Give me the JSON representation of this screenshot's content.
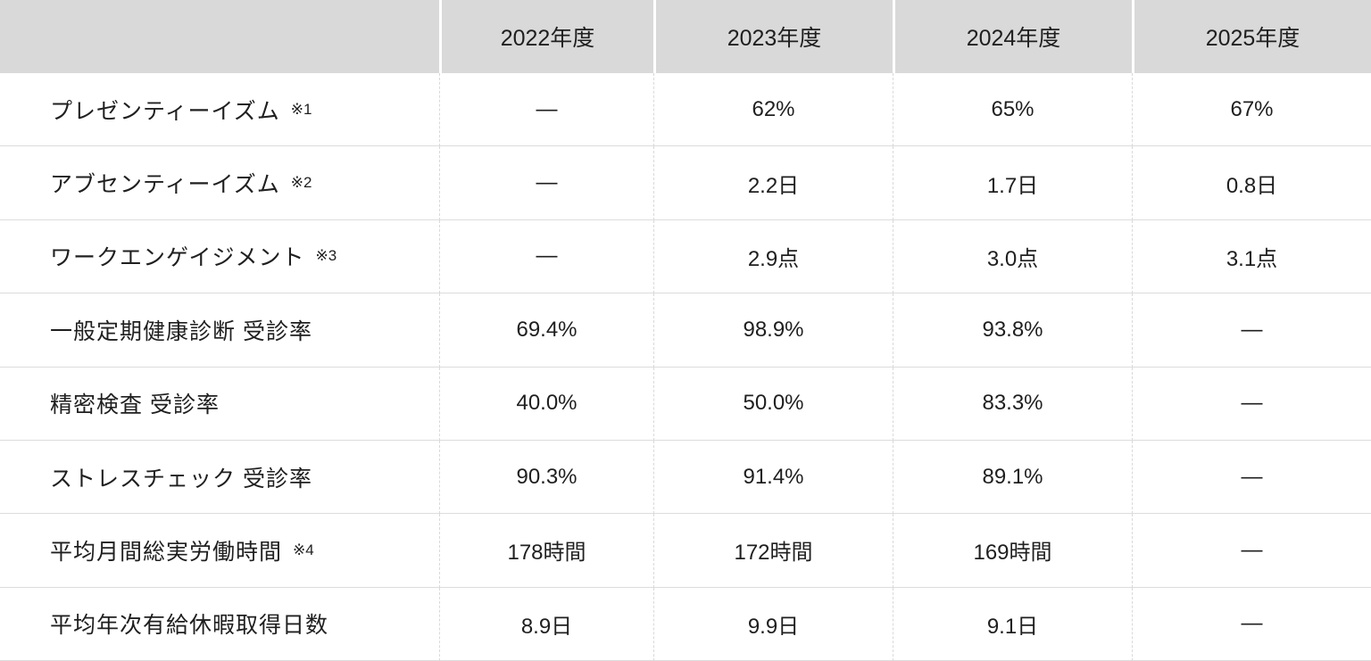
{
  "chart_data": {
    "type": "table",
    "title": "",
    "columns": [
      "2022年度",
      "2023年度",
      "2024年度",
      "2025年度"
    ],
    "rows": [
      {
        "label": "プレゼンティーイズム",
        "note": "※1",
        "values": [
          "—",
          "62%",
          "65%",
          "67%"
        ]
      },
      {
        "label": "アブセンティーイズム",
        "note": "※2",
        "values": [
          "—",
          "2.2日",
          "1.7日",
          "0.8日"
        ]
      },
      {
        "label": "ワークエンゲイジメント",
        "note": "※3",
        "values": [
          "—",
          "2.9点",
          "3.0点",
          "3.1点"
        ]
      },
      {
        "label": "一般定期健康診断 受診率",
        "note": "",
        "values": [
          "69.4%",
          "98.9%",
          "93.8%",
          "—"
        ]
      },
      {
        "label": "精密検査 受診率",
        "note": "",
        "values": [
          "40.0%",
          "50.0%",
          "83.3%",
          "—"
        ]
      },
      {
        "label": "ストレスチェック 受診率",
        "note": "",
        "values": [
          "90.3%",
          "91.4%",
          "89.1%",
          "—"
        ]
      },
      {
        "label": "平均月間総実労働時間",
        "note": "※4",
        "values": [
          "178時間",
          "172時間",
          "169時間",
          "—"
        ]
      },
      {
        "label": "平均年次有給休暇取得日数",
        "note": "",
        "values": [
          "8.9日",
          "9.9日",
          "9.1日",
          "—"
        ]
      }
    ],
    "layout": {
      "header_position": "top",
      "grid": true
    }
  },
  "colors": {
    "header_bg": "#d9d9d9",
    "grid_line": "#dcdcdc",
    "text": "#1f1f1f"
  }
}
